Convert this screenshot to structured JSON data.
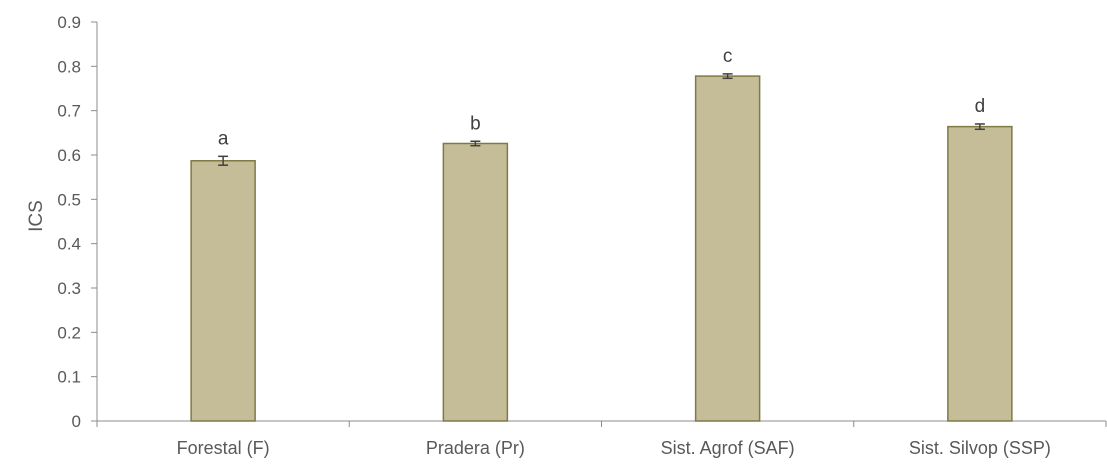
{
  "chart_data": {
    "type": "bar",
    "categories": [
      "Forestal (F)",
      "Pradera (Pr)",
      "Sist. Agrof (SAF)",
      "Sist. Silvop (SSP)"
    ],
    "values": [
      0.587,
      0.626,
      0.778,
      0.664
    ],
    "errors": [
      0.01,
      0.005,
      0.005,
      0.006
    ],
    "significance_letters": [
      "a",
      "b",
      "c",
      "d"
    ],
    "xlabel": "",
    "ylabel": "ICS",
    "ylim": [
      0,
      0.9
    ],
    "yticks": [
      "0",
      "0.1",
      "0.2",
      "0.3",
      "0.4",
      "0.5",
      "0.6",
      "0.7",
      "0.8",
      "0.9"
    ],
    "grid": false,
    "colors": {
      "bar_fill": "#c4bd97",
      "bar_stroke": "#7f7a45",
      "axis": "#8c8c8c"
    }
  }
}
